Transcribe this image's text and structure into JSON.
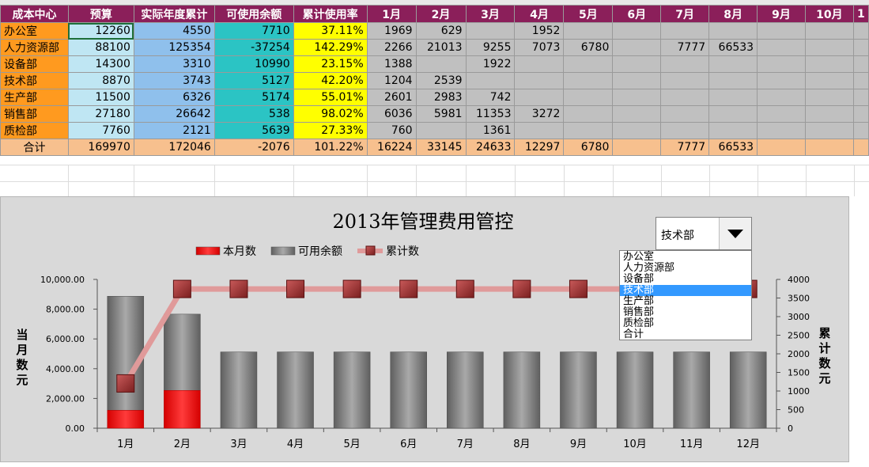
{
  "sheet": {
    "headers": [
      "成本中心",
      "预算",
      "实际年度累计",
      "可使用余额",
      "累计使用率",
      "1月",
      "2月",
      "3月",
      "4月",
      "5月",
      "6月",
      "7月",
      "8月",
      "9月",
      "10月",
      "1"
    ],
    "rows": [
      {
        "name": "办公室",
        "budget": "12260",
        "actual": "4550",
        "avail": "7710",
        "rate": "37.11%",
        "months": [
          "1969",
          "629",
          "",
          "1952",
          "",
          "",
          "",
          "",
          "",
          ""
        ]
      },
      {
        "name": "人力资源部",
        "budget": "88100",
        "actual": "125354",
        "avail": "-37254",
        "rate": "142.29%",
        "months": [
          "2266",
          "21013",
          "9255",
          "7073",
          "6780",
          "",
          "7777",
          "66533",
          "",
          ""
        ]
      },
      {
        "name": "设备部",
        "budget": "14300",
        "actual": "3310",
        "avail": "10990",
        "rate": "23.15%",
        "months": [
          "1388",
          "",
          "1922",
          "",
          "",
          "",
          "",
          "",
          "",
          ""
        ]
      },
      {
        "name": "技术部",
        "budget": "8870",
        "actual": "3743",
        "avail": "5127",
        "rate": "42.20%",
        "months": [
          "1204",
          "2539",
          "",
          "",
          "",
          "",
          "",
          "",
          "",
          ""
        ]
      },
      {
        "name": "生产部",
        "budget": "11500",
        "actual": "6326",
        "avail": "5174",
        "rate": "55.01%",
        "months": [
          "2601",
          "2983",
          "742",
          "",
          "",
          "",
          "",
          "",
          "",
          ""
        ]
      },
      {
        "name": "销售部",
        "budget": "27180",
        "actual": "26642",
        "avail": "538",
        "rate": "98.02%",
        "months": [
          "6036",
          "5981",
          "11353",
          "3272",
          "",
          "",
          "",
          "",
          "",
          ""
        ]
      },
      {
        "name": "质检部",
        "budget": "7760",
        "actual": "2121",
        "avail": "5639",
        "rate": "27.33%",
        "months": [
          "760",
          "",
          "1361",
          "",
          "",
          "",
          "",
          "",
          "",
          ""
        ]
      }
    ],
    "total": {
      "name": "合计",
      "budget": "169970",
      "actual": "172046",
      "avail": "-2076",
      "rate": "101.22%",
      "months": [
        "16224",
        "33145",
        "24633",
        "12297",
        "6780",
        "",
        "7777",
        "66533",
        "",
        ""
      ]
    }
  },
  "dropdown": {
    "selected": "技术部",
    "options": [
      "办公室",
      "人力资源部",
      "设备部",
      "技术部",
      "生产部",
      "销售部",
      "质检部",
      "合计"
    ]
  },
  "chart_data": {
    "type": "bar",
    "title": "2013年管理费用管控",
    "categories": [
      "1月",
      "2月",
      "3月",
      "4月",
      "5月",
      "6月",
      "7月",
      "8月",
      "9月",
      "10月",
      "11月",
      "12月"
    ],
    "series": [
      {
        "name": "本月数",
        "kind": "stacked-bar",
        "color": "#ff0000",
        "values": [
          1204,
          2539,
          0,
          0,
          0,
          0,
          0,
          0,
          0,
          0,
          0,
          0
        ]
      },
      {
        "name": "可用余额",
        "kind": "stacked-bar",
        "color": "#7f7f7f",
        "values": [
          7666,
          5127,
          5127,
          5127,
          5127,
          5127,
          5127,
          5127,
          5127,
          5127,
          5127,
          5127
        ]
      },
      {
        "name": "累计数",
        "kind": "line",
        "axis": "right",
        "color": "#e09a9a",
        "marker_color": "#a33a3a",
        "values": [
          1204,
          3743,
          3743,
          3743,
          3743,
          3743,
          3743,
          3743,
          3743,
          3743,
          3743,
          3743
        ]
      }
    ],
    "ylabel": "当月数元",
    "y2label": "累计数元",
    "ylim": [
      0,
      10000
    ],
    "y2lim": [
      0,
      4000
    ],
    "yticks": [
      "0.00",
      "2,000.00",
      "4,000.00",
      "6,000.00",
      "8,000.00",
      "10,000.00"
    ],
    "y2ticks": [
      "0",
      "500",
      "1000",
      "1500",
      "2000",
      "2500",
      "3000",
      "3500",
      "4000"
    ],
    "legend": "top-left",
    "grid": false
  }
}
